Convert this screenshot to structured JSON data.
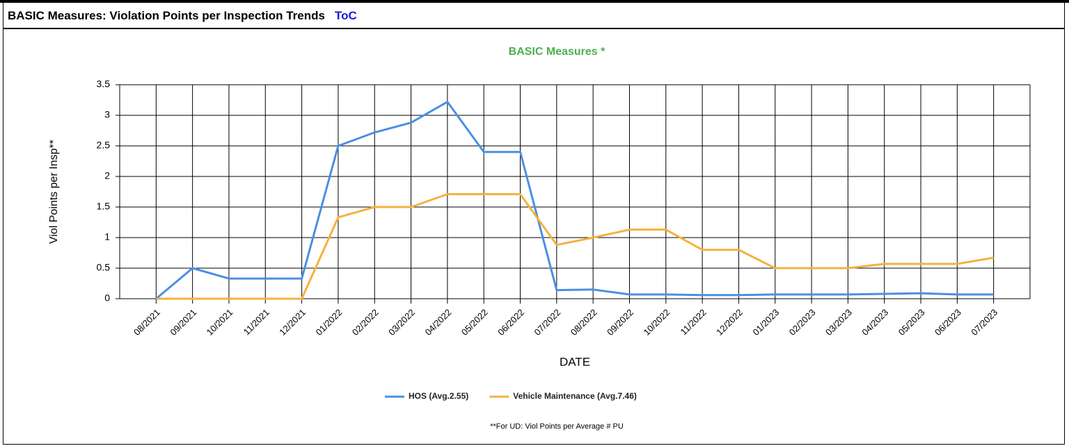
{
  "header": {
    "title": "BASIC Measures: Violation Points per Inspection Trends",
    "link": "ToC"
  },
  "chart_data": {
    "type": "line",
    "title": "BASIC Measures *",
    "ylabel": "Viol Points per Insp**",
    "xlabel": "DATE",
    "footnote": "**For UD: Viol Points per Average # PU",
    "categories": [
      "08/2021",
      "09/2021",
      "10/2021",
      "11/2021",
      "12/2021",
      "01/2022",
      "02/2022",
      "03/2022",
      "04/2022",
      "05/2022",
      "06/2022",
      "07/2022",
      "08/2022",
      "09/2022",
      "10/2022",
      "11/2022",
      "12/2022",
      "01/2023",
      "02/2023",
      "03/2023",
      "04/2023",
      "05/2023",
      "06/2023",
      "07/2023"
    ],
    "series": [
      {
        "name": "HOS (Avg.2.55)",
        "color": "#4a8fe4",
        "values": [
          0,
          0.5,
          0.33,
          0.33,
          0.33,
          2.5,
          2.72,
          2.88,
          3.22,
          2.4,
          2.4,
          0.14,
          0.15,
          0.07,
          0.07,
          0.06,
          0.06,
          0.07,
          0.07,
          0.07,
          0.08,
          0.09,
          0.07,
          0.07
        ]
      },
      {
        "name": "Vehicle Maintenance (Avg.7.46)",
        "color": "#f6b13f",
        "values": [
          0,
          0,
          0,
          0,
          0,
          1.33,
          1.5,
          1.5,
          1.71,
          1.71,
          1.71,
          0.88,
          1.0,
          1.13,
          1.13,
          0.8,
          0.8,
          0.5,
          0.5,
          0.5,
          0.57,
          0.57,
          0.57,
          0.67
        ]
      }
    ],
    "ylim": [
      0,
      3.5
    ],
    "yticks": [
      0,
      0.5,
      1,
      1.5,
      2,
      2.5,
      3,
      3.5
    ],
    "grid": true
  }
}
